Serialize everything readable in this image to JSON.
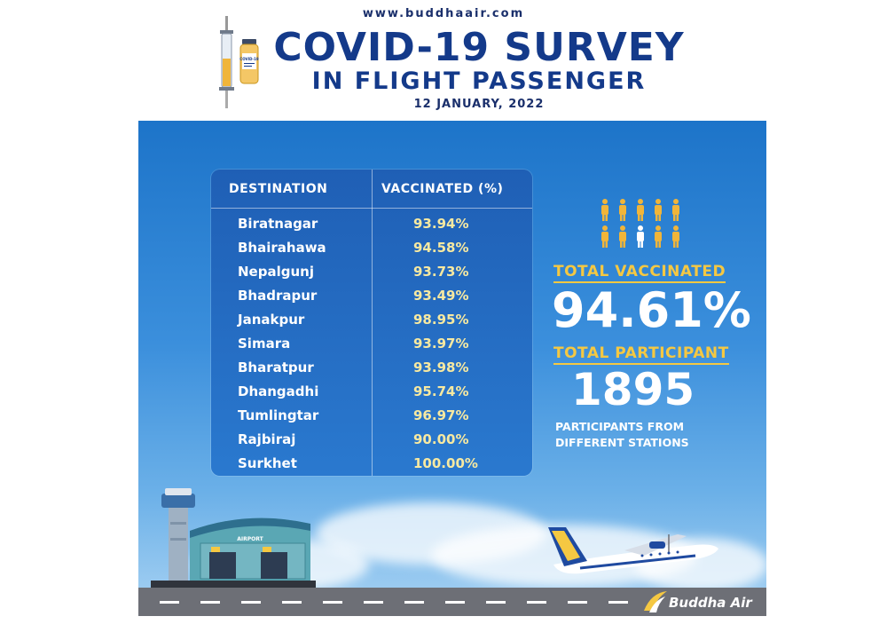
{
  "header": {
    "website": "www.buddhaair.com",
    "title_line1": "COVID-19 SURVEY",
    "title_line2": "IN FLIGHT PASSENGER",
    "date": "12 JANUARY, 2022"
  },
  "vaccine_label": "COVID-19",
  "table": {
    "headers": [
      "DESTINATION",
      "VACCINATED (%)"
    ],
    "rows": [
      {
        "destination": "Biratnagar",
        "vaccinated": "93.94%"
      },
      {
        "destination": "Bhairahawa",
        "vaccinated": "94.58%"
      },
      {
        "destination": "Nepalgunj",
        "vaccinated": "93.73%"
      },
      {
        "destination": "Bhadrapur",
        "vaccinated": "93.49%"
      },
      {
        "destination": "Janakpur",
        "vaccinated": "98.95%"
      },
      {
        "destination": "Simara",
        "vaccinated": "93.97%"
      },
      {
        "destination": "Bharatpur",
        "vaccinated": "93.98%"
      },
      {
        "destination": "Dhangadhi",
        "vaccinated": "95.74%"
      },
      {
        "destination": "Tumlingtar",
        "vaccinated": "96.97%"
      },
      {
        "destination": "Rajbiraj",
        "vaccinated": "90.00%"
      },
      {
        "destination": "Surkhet",
        "vaccinated": "100.00%"
      }
    ]
  },
  "stats": {
    "total_vaccinated_label": "TOTAL VACCINATED",
    "total_vaccinated_value": "94.61%",
    "total_participant_label": "TOTAL PARTICIPANT",
    "total_participant_value": "1895",
    "participant_note": "PARTICIPANTS FROM DIFFERENT STATIONS"
  },
  "illustration": {
    "airport_sign": "AIRPORT",
    "people_icons": {
      "total": 10,
      "highlighted": 1
    }
  },
  "brand": {
    "name": "Buddha Air"
  },
  "colors": {
    "navy": "#143a8a",
    "accent_yellow": "#f5c842",
    "value_yellow": "#f7e9a1",
    "sky": "#1d74c9"
  }
}
